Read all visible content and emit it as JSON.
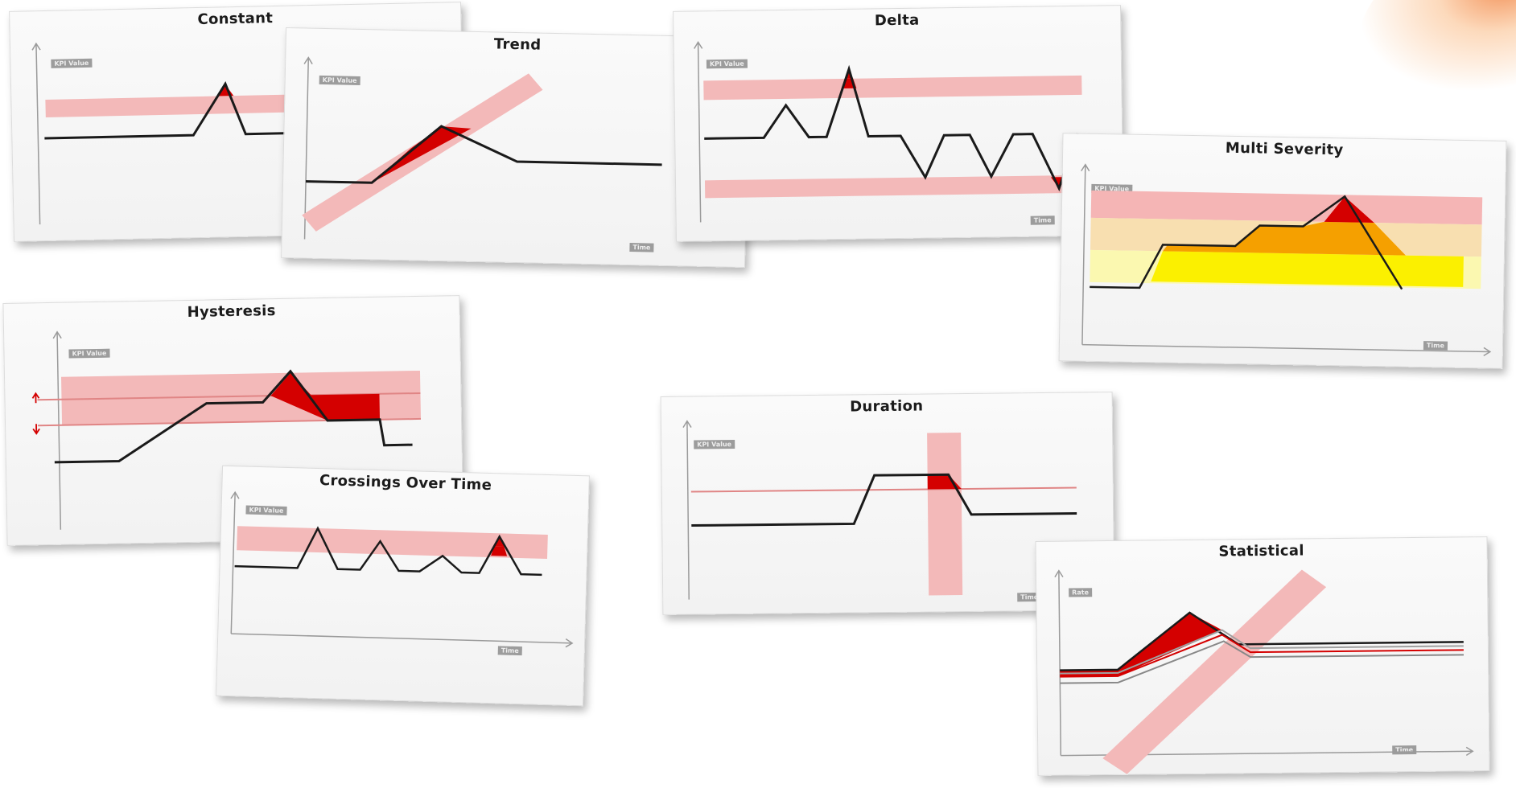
{
  "cards": {
    "constant": {
      "title": "Constant",
      "y_tag": "KPI Value"
    },
    "trend": {
      "title": "Trend",
      "y_tag": "KPI Value",
      "x_tag": "Time"
    },
    "delta": {
      "title": "Delta",
      "y_tag": "KPI Value",
      "x_tag": "Time"
    },
    "multi_severity": {
      "title": "Multi Severity",
      "y_tag": "KPI Value",
      "x_tag": "Time"
    },
    "hysteresis": {
      "title": "Hysteresis",
      "y_tag": "KPI Value"
    },
    "crossings": {
      "title": "Crossings Over Time",
      "y_tag": "KPI Value",
      "x_tag": "Time"
    },
    "duration": {
      "title": "Duration",
      "y_tag": "KPI Value",
      "x_tag": "Time"
    },
    "statistical": {
      "title": "Statistical",
      "y_tag": "Rate",
      "x_tag": "Time"
    }
  },
  "colors": {
    "band": "#f3b9b9",
    "breach": "#d40000",
    "line": "#1a1a1a",
    "orange": "#f5a000",
    "yellow": "#fbf000"
  }
}
